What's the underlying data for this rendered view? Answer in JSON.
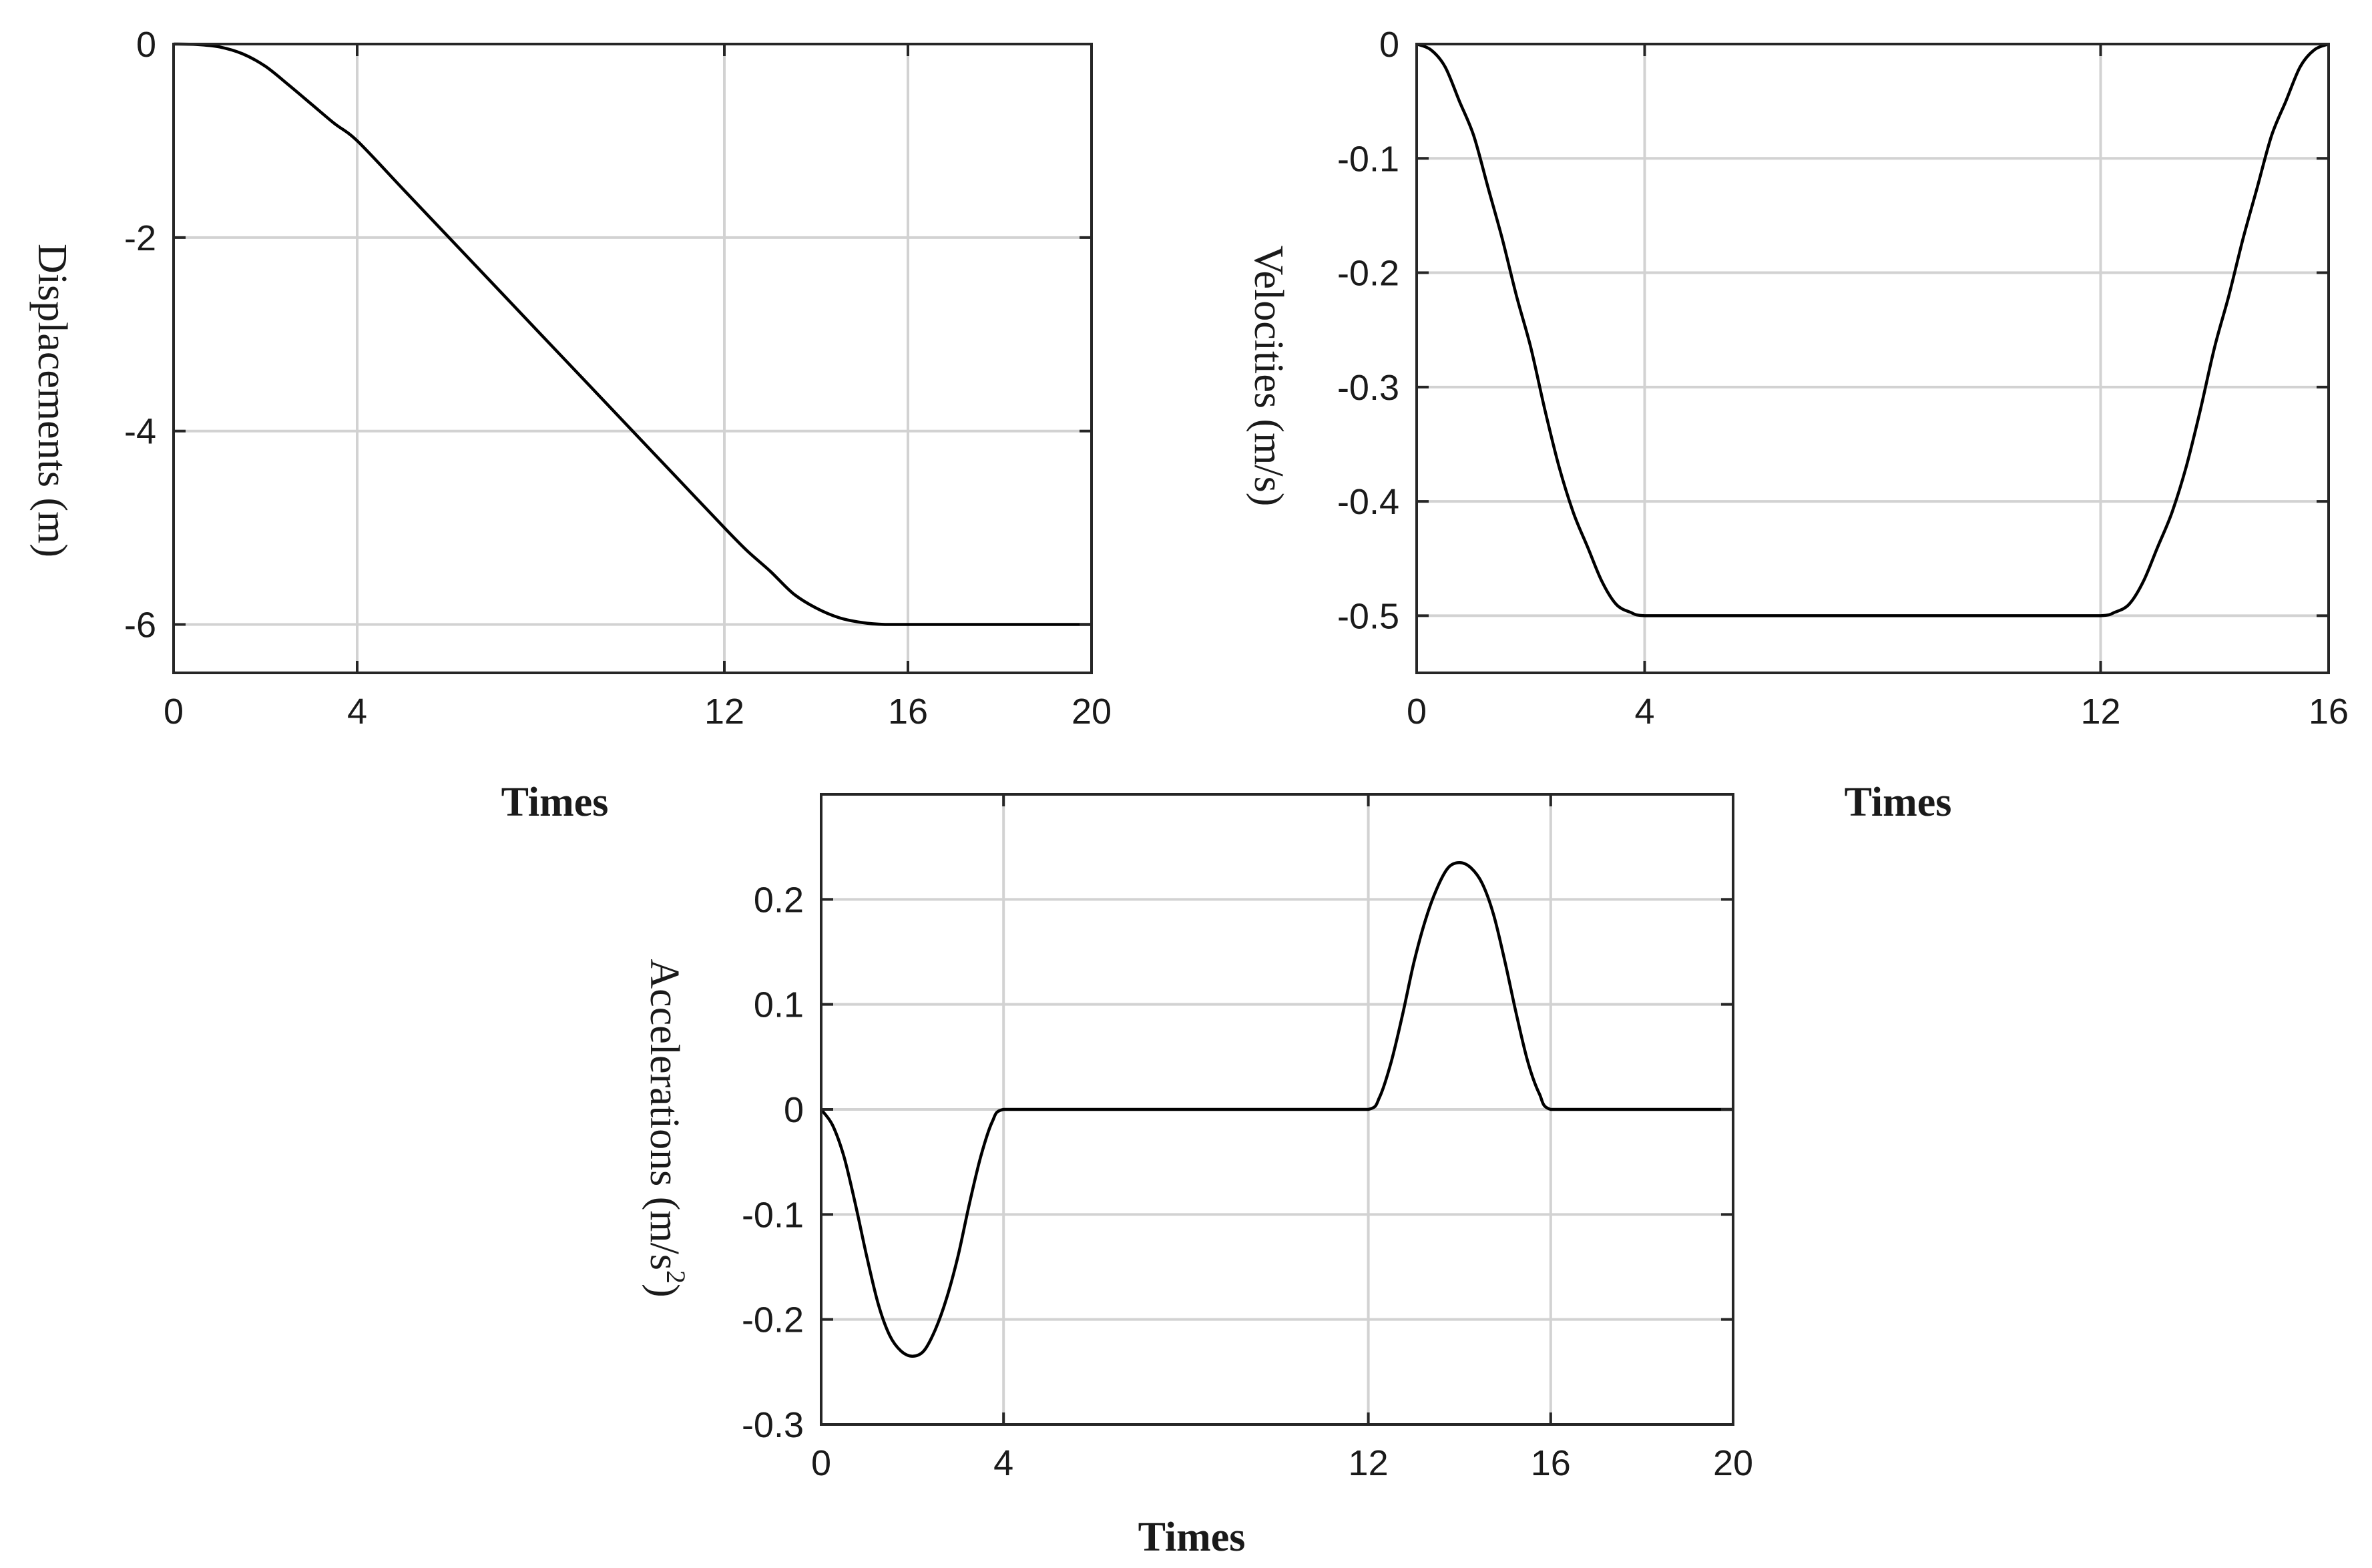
{
  "chart_data": [
    {
      "id": "displacement",
      "type": "line",
      "xlabel": "Times",
      "ylabel": "Displacements (m)",
      "xlim": [
        0,
        20
      ],
      "ylim": [
        -6.5,
        0
      ],
      "x_ticks": [
        0,
        4,
        12,
        16,
        20
      ],
      "x_tick_labels": [
        "0",
        "4",
        "12",
        "16",
        "20"
      ],
      "y_ticks": [
        0,
        -2,
        -4,
        -6
      ],
      "y_tick_labels": [
        "0",
        "-2",
        "-4",
        "-6"
      ],
      "grid": true,
      "series": [
        {
          "name": "displacement",
          "x": [
            0,
            0.5,
            1,
            1.5,
            2,
            2.5,
            3,
            3.5,
            4,
            5,
            6,
            7,
            8,
            9,
            10,
            11,
            12,
            12.5,
            13,
            13.5,
            14,
            14.5,
            15,
            15.5,
            16,
            17,
            18,
            19,
            20
          ],
          "y": [
            0,
            -0.004,
            -0.03,
            -0.1,
            -0.23,
            -0.42,
            -0.62,
            -0.82,
            -1.0,
            -1.5,
            -2.0,
            -2.5,
            -3.0,
            -3.5,
            -4.0,
            -4.5,
            -5.0,
            -5.24,
            -5.45,
            -5.68,
            -5.83,
            -5.93,
            -5.98,
            -6.0,
            -6.0,
            -6.0,
            -6.0,
            -6.0,
            -6.0
          ]
        }
      ]
    },
    {
      "id": "velocity",
      "type": "line",
      "xlabel": "Times",
      "ylabel": "Velocities (m/s)",
      "xlim": [
        0,
        16
      ],
      "ylim": [
        -0.55,
        0
      ],
      "x_ticks": [
        0,
        4,
        12,
        16
      ],
      "x_tick_labels": [
        "0",
        "4",
        "12",
        "16"
      ],
      "y_ticks": [
        0,
        -0.1,
        -0.2,
        -0.3,
        -0.4,
        -0.5
      ],
      "y_tick_labels": [
        "0",
        "-0.1",
        "-0.2",
        "-0.3",
        "-0.4",
        "-0.5"
      ],
      "grid": true,
      "series": [
        {
          "name": "velocity",
          "x": [
            0,
            0.25,
            0.5,
            0.75,
            1,
            1.25,
            1.5,
            1.75,
            2,
            2.25,
            2.5,
            2.75,
            3,
            3.25,
            3.5,
            3.75,
            4,
            5,
            6,
            7,
            8,
            9,
            10,
            11,
            12,
            12.25,
            12.5,
            12.75,
            13,
            13.25,
            13.5,
            13.75,
            14,
            14.25,
            14.5,
            14.75,
            15,
            15.25,
            15.5,
            15.75,
            16
          ],
          "y": [
            0,
            -0.005,
            -0.02,
            -0.05,
            -0.08,
            -0.125,
            -0.17,
            -0.22,
            -0.265,
            -0.32,
            -0.37,
            -0.41,
            -0.44,
            -0.47,
            -0.49,
            -0.497,
            -0.5,
            -0.5,
            -0.5,
            -0.5,
            -0.5,
            -0.5,
            -0.5,
            -0.5,
            -0.5,
            -0.497,
            -0.49,
            -0.47,
            -0.44,
            -0.41,
            -0.37,
            -0.32,
            -0.265,
            -0.22,
            -0.17,
            -0.125,
            -0.08,
            -0.05,
            -0.02,
            -0.005,
            0
          ]
        }
      ]
    },
    {
      "id": "acceleration",
      "type": "line",
      "xlabel": "Times",
      "ylabel": "Accelerations (m/s",
      "ylabel_superscript": "2",
      "ylabel_suffix": ")",
      "xlim": [
        0,
        20
      ],
      "ylim": [
        -0.3,
        0.3
      ],
      "x_ticks": [
        0,
        4,
        12,
        16,
        20
      ],
      "x_tick_labels": [
        "0",
        "4",
        "12",
        "16",
        "20"
      ],
      "y_ticks": [
        0.2,
        0.1,
        0,
        -0.1,
        -0.2,
        -0.3
      ],
      "y_tick_labels": [
        "0.2",
        "0.1",
        "0",
        "-0.1",
        "-0.2",
        "-0.3"
      ],
      "grid": true,
      "series": [
        {
          "name": "acceleration",
          "x": [
            0,
            0.25,
            0.5,
            0.75,
            1,
            1.25,
            1.5,
            1.75,
            2,
            2.25,
            2.5,
            2.75,
            3,
            3.25,
            3.5,
            3.75,
            4,
            5,
            6,
            7,
            8,
            9,
            10,
            11,
            12,
            12.25,
            12.5,
            12.75,
            13,
            13.25,
            13.5,
            13.75,
            14,
            14.25,
            14.5,
            14.75,
            15,
            15.25,
            15.5,
            15.75,
            16,
            17,
            18,
            19,
            20
          ],
          "y": [
            0,
            -0.015,
            -0.045,
            -0.09,
            -0.14,
            -0.185,
            -0.215,
            -0.23,
            -0.235,
            -0.23,
            -0.21,
            -0.18,
            -0.14,
            -0.09,
            -0.045,
            -0.012,
            0,
            0,
            0,
            0,
            0,
            0,
            0,
            0,
            0,
            0.012,
            0.045,
            0.09,
            0.14,
            0.18,
            0.21,
            0.23,
            0.235,
            0.23,
            0.215,
            0.185,
            0.14,
            0.09,
            0.045,
            0.015,
            0,
            0,
            0,
            0,
            0
          ]
        }
      ]
    }
  ]
}
